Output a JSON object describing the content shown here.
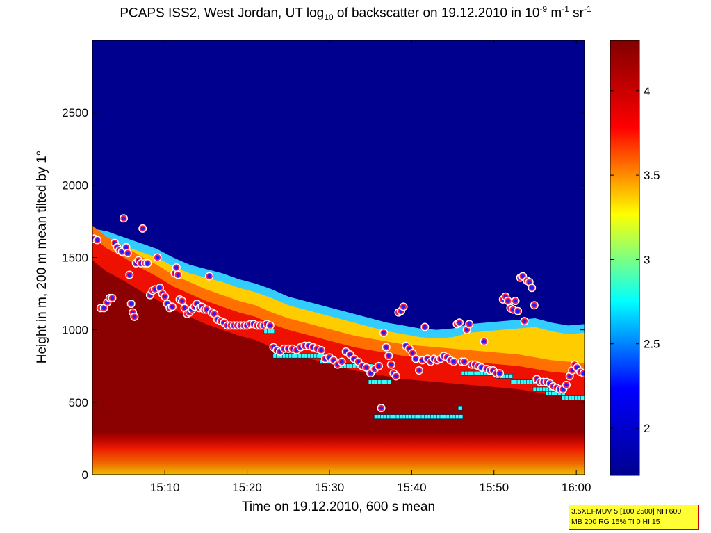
{
  "chart_data": {
    "type": "heatmap",
    "title": {
      "prefix": "PCAPS ISS2, West Jordan, UT log",
      "prefix_sub": "10",
      "middle": " of backscatter on 19.12.2010 in 10",
      "middle_sup": "-9",
      "unit1": " m",
      "unit1_sup": "-1",
      "unit2": " sr",
      "unit2_sup": "-1"
    },
    "xlabel": "Time on 19.12.2010, 600 s mean",
    "ylabel": "Height in m, 200 m mean tilted by 1°",
    "x_ticks": [
      {
        "label": "15:10",
        "minutes": 10
      },
      {
        "label": "15:20",
        "minutes": 20
      },
      {
        "label": "15:30",
        "minutes": 30
      },
      {
        "label": "15:40",
        "minutes": 40
      },
      {
        "label": "15:50",
        "minutes": 50
      },
      {
        "label": "16:00",
        "minutes": 60
      }
    ],
    "xlim_minutes": [
      1.2,
      61
    ],
    "y_ticks": [
      0,
      500,
      1000,
      1500,
      2000,
      2500
    ],
    "ylim": [
      0,
      3000
    ],
    "colorbar": {
      "ticks": [
        2,
        2.5,
        3,
        3.5,
        4
      ],
      "range": [
        1.72,
        4.3
      ],
      "colors": [
        "#00008f",
        "#0000ff",
        "#00ffff",
        "#ffff00",
        "#ff0000",
        "#800000"
      ]
    },
    "aerosol_top_height": [
      [
        1.2,
        1700
      ],
      [
        3,
        1680
      ],
      [
        5,
        1640
      ],
      [
        7,
        1600
      ],
      [
        9,
        1560
      ],
      [
        11,
        1500
      ],
      [
        13,
        1450
      ],
      [
        15,
        1420
      ],
      [
        17,
        1390
      ],
      [
        19,
        1350
      ],
      [
        21,
        1320
      ],
      [
        23,
        1280
      ],
      [
        25,
        1230
      ],
      [
        27,
        1200
      ],
      [
        29,
        1170
      ],
      [
        31,
        1140
      ],
      [
        33,
        1110
      ],
      [
        35,
        1080
      ],
      [
        37,
        1050
      ],
      [
        39,
        1030
      ],
      [
        41,
        1010
      ],
      [
        43,
        1000
      ],
      [
        45,
        1010
      ],
      [
        47,
        1040
      ],
      [
        49,
        1050
      ],
      [
        51,
        1060
      ],
      [
        53,
        1070
      ],
      [
        55,
        1080
      ],
      [
        57,
        1050
      ],
      [
        59,
        1030
      ],
      [
        61,
        1040
      ]
    ],
    "mixed_layer_height": [
      [
        1.2,
        1600
      ],
      [
        3,
        1520
      ],
      [
        5,
        1460
      ],
      [
        7,
        1390
      ],
      [
        9,
        1330
      ],
      [
        11,
        1260
      ],
      [
        13,
        1210
      ],
      [
        15,
        1160
      ],
      [
        17,
        1120
      ],
      [
        19,
        1080
      ],
      [
        21,
        1050
      ],
      [
        23,
        1000
      ],
      [
        25,
        960
      ],
      [
        27,
        930
      ],
      [
        29,
        900
      ],
      [
        31,
        870
      ],
      [
        33,
        840
      ],
      [
        35,
        820
      ],
      [
        37,
        800
      ],
      [
        39,
        780
      ],
      [
        41,
        770
      ],
      [
        43,
        760
      ],
      [
        45,
        750
      ],
      [
        47,
        740
      ],
      [
        49,
        730
      ],
      [
        51,
        720
      ],
      [
        53,
        710
      ],
      [
        55,
        690
      ],
      [
        57,
        670
      ],
      [
        59,
        660
      ],
      [
        61,
        650
      ]
    ],
    "series_layer_detection": {
      "points": [
        [
          1.4,
          1630
        ],
        [
          1.8,
          1620
        ],
        [
          2.2,
          1150
        ],
        [
          2.6,
          1150
        ],
        [
          3.0,
          1190
        ],
        [
          3.3,
          1220
        ],
        [
          3.6,
          1220
        ],
        [
          3.9,
          1600
        ],
        [
          4.2,
          1570
        ],
        [
          4.5,
          1550
        ],
        [
          4.8,
          1540
        ],
        [
          5.0,
          1770
        ],
        [
          5.3,
          1570
        ],
        [
          5.5,
          1530
        ],
        [
          5.7,
          1380
        ],
        [
          5.9,
          1180
        ],
        [
          6.1,
          1120
        ],
        [
          6.3,
          1090
        ],
        [
          6.5,
          1460
        ],
        [
          6.8,
          1480
        ],
        [
          7.1,
          1460
        ],
        [
          7.3,
          1700
        ],
        [
          7.6,
          1460
        ],
        [
          7.9,
          1460
        ],
        [
          8.2,
          1240
        ],
        [
          8.5,
          1270
        ],
        [
          8.8,
          1280
        ],
        [
          9.1,
          1500
        ],
        [
          9.4,
          1290
        ],
        [
          9.7,
          1250
        ],
        [
          10.0,
          1230
        ],
        [
          10.3,
          1180
        ],
        [
          10.6,
          1150
        ],
        [
          10.9,
          1160
        ],
        [
          11.2,
          1390
        ],
        [
          11.4,
          1430
        ],
        [
          11.6,
          1380
        ],
        [
          11.8,
          1210
        ],
        [
          12.1,
          1200
        ],
        [
          12.4,
          1150
        ],
        [
          12.7,
          1110
        ],
        [
          13.0,
          1120
        ],
        [
          13.3,
          1140
        ],
        [
          13.6,
          1160
        ],
        [
          13.9,
          1180
        ],
        [
          14.2,
          1150
        ],
        [
          14.5,
          1160
        ],
        [
          14.8,
          1140
        ],
        [
          15.1,
          1140
        ],
        [
          15.4,
          1370
        ],
        [
          15.7,
          1120
        ],
        [
          16.0,
          1110
        ],
        [
          16.4,
          1070
        ],
        [
          16.8,
          1060
        ],
        [
          17.2,
          1050
        ],
        [
          17.6,
          1030
        ],
        [
          18.0,
          1030
        ],
        [
          18.4,
          1030
        ],
        [
          18.8,
          1030
        ],
        [
          19.2,
          1030
        ],
        [
          19.6,
          1030
        ],
        [
          20.0,
          1030
        ],
        [
          20.4,
          1040
        ],
        [
          20.8,
          1040
        ],
        [
          21.2,
          1030
        ],
        [
          21.6,
          1030
        ],
        [
          22.0,
          1030
        ],
        [
          22.4,
          1040
        ],
        [
          22.8,
          1030
        ],
        [
          23.2,
          880
        ],
        [
          23.6,
          860
        ],
        [
          24.0,
          850
        ],
        [
          24.5,
          870
        ],
        [
          25.0,
          870
        ],
        [
          25.5,
          870
        ],
        [
          26.0,
          860
        ],
        [
          26.5,
          880
        ],
        [
          27.0,
          890
        ],
        [
          27.5,
          890
        ],
        [
          28.0,
          880
        ],
        [
          28.5,
          870
        ],
        [
          29.0,
          860
        ],
        [
          29.5,
          800
        ],
        [
          30.0,
          810
        ],
        [
          30.5,
          790
        ],
        [
          31.0,
          760
        ],
        [
          31.5,
          780
        ],
        [
          32.0,
          850
        ],
        [
          32.5,
          830
        ],
        [
          33.0,
          800
        ],
        [
          33.5,
          780
        ],
        [
          34.0,
          750
        ],
        [
          34.5,
          740
        ],
        [
          35.0,
          700
        ],
        [
          35.5,
          730
        ],
        [
          36.0,
          750
        ],
        [
          36.3,
          460
        ],
        [
          36.6,
          980
        ],
        [
          36.9,
          880
        ],
        [
          37.2,
          820
        ],
        [
          37.5,
          760
        ],
        [
          37.8,
          700
        ],
        [
          38.1,
          680
        ],
        [
          38.4,
          1120
        ],
        [
          38.7,
          1130
        ],
        [
          39.0,
          1160
        ],
        [
          39.3,
          890
        ],
        [
          39.7,
          870
        ],
        [
          40.1,
          840
        ],
        [
          40.5,
          800
        ],
        [
          40.9,
          720
        ],
        [
          41.3,
          790
        ],
        [
          41.6,
          1020
        ],
        [
          41.9,
          800
        ],
        [
          42.3,
          780
        ],
        [
          42.7,
          800
        ],
        [
          43.1,
          790
        ],
        [
          43.5,
          800
        ],
        [
          43.9,
          820
        ],
        [
          44.3,
          810
        ],
        [
          44.7,
          790
        ],
        [
          45.1,
          780
        ],
        [
          45.5,
          1040
        ],
        [
          45.8,
          1050
        ],
        [
          46.1,
          780
        ],
        [
          46.4,
          780
        ],
        [
          46.7,
          1000
        ],
        [
          47.0,
          1040
        ],
        [
          47.3,
          760
        ],
        [
          47.7,
          760
        ],
        [
          48.1,
          750
        ],
        [
          48.5,
          740
        ],
        [
          48.8,
          920
        ],
        [
          49.1,
          730
        ],
        [
          49.5,
          720
        ],
        [
          49.9,
          720
        ],
        [
          50.3,
          700
        ],
        [
          50.7,
          700
        ],
        [
          51.1,
          1210
        ],
        [
          51.4,
          1230
        ],
        [
          51.7,
          1200
        ],
        [
          52.0,
          1150
        ],
        [
          52.3,
          1140
        ],
        [
          52.6,
          1200
        ],
        [
          52.9,
          1130
        ],
        [
          53.2,
          1360
        ],
        [
          53.5,
          1370
        ],
        [
          53.7,
          1060
        ],
        [
          54.0,
          1340
        ],
        [
          54.3,
          1330
        ],
        [
          54.6,
          1290
        ],
        [
          54.9,
          1170
        ],
        [
          55.2,
          660
        ],
        [
          55.6,
          640
        ],
        [
          56.0,
          640
        ],
        [
          56.4,
          640
        ],
        [
          56.8,
          630
        ],
        [
          57.2,
          610
        ],
        [
          57.6,
          600
        ],
        [
          58.0,
          590
        ],
        [
          58.4,
          590
        ],
        [
          58.8,
          620
        ],
        [
          59.2,
          680
        ],
        [
          59.5,
          720
        ],
        [
          59.8,
          760
        ],
        [
          60.1,
          740
        ],
        [
          60.5,
          710
        ],
        [
          60.9,
          700
        ]
      ]
    },
    "series_cloud_base": {
      "segments": [
        {
          "x": [
            22.3,
            23.2
          ],
          "y": 990
        },
        {
          "x": [
            23.1,
            23.4
          ],
          "y": 890
        },
        {
          "x": [
            23.4,
            29.2
          ],
          "y": 820
        },
        {
          "x": [
            29.1,
            31.2
          ],
          "y": 780
        },
        {
          "x": [
            31.2,
            35.2
          ],
          "y": 750
        },
        {
          "x": [
            35.0,
            37.4
          ],
          "y": 640
        },
        {
          "x": [
            35.7,
            46.0
          ],
          "y": 400
        },
        {
          "x": [
            45.9,
            46.1
          ],
          "y": 460
        },
        {
          "x": [
            46.3,
            50.6
          ],
          "y": 700
        },
        {
          "x": [
            50.5,
            52.3
          ],
          "y": 680
        },
        {
          "x": [
            52.3,
            55.5
          ],
          "y": 640
        },
        {
          "x": [
            55.0,
            57.6
          ],
          "y": 590
        },
        {
          "x": [
            56.5,
            58.6
          ],
          "y": 560
        },
        {
          "x": [
            58.5,
            61.0
          ],
          "y": 530
        }
      ]
    }
  },
  "info_box": {
    "line1": "3.5XEFMUV 5 [100 2500] NH 600",
    "line2": "MB 200 RG 15% TI 0 HI 15"
  }
}
